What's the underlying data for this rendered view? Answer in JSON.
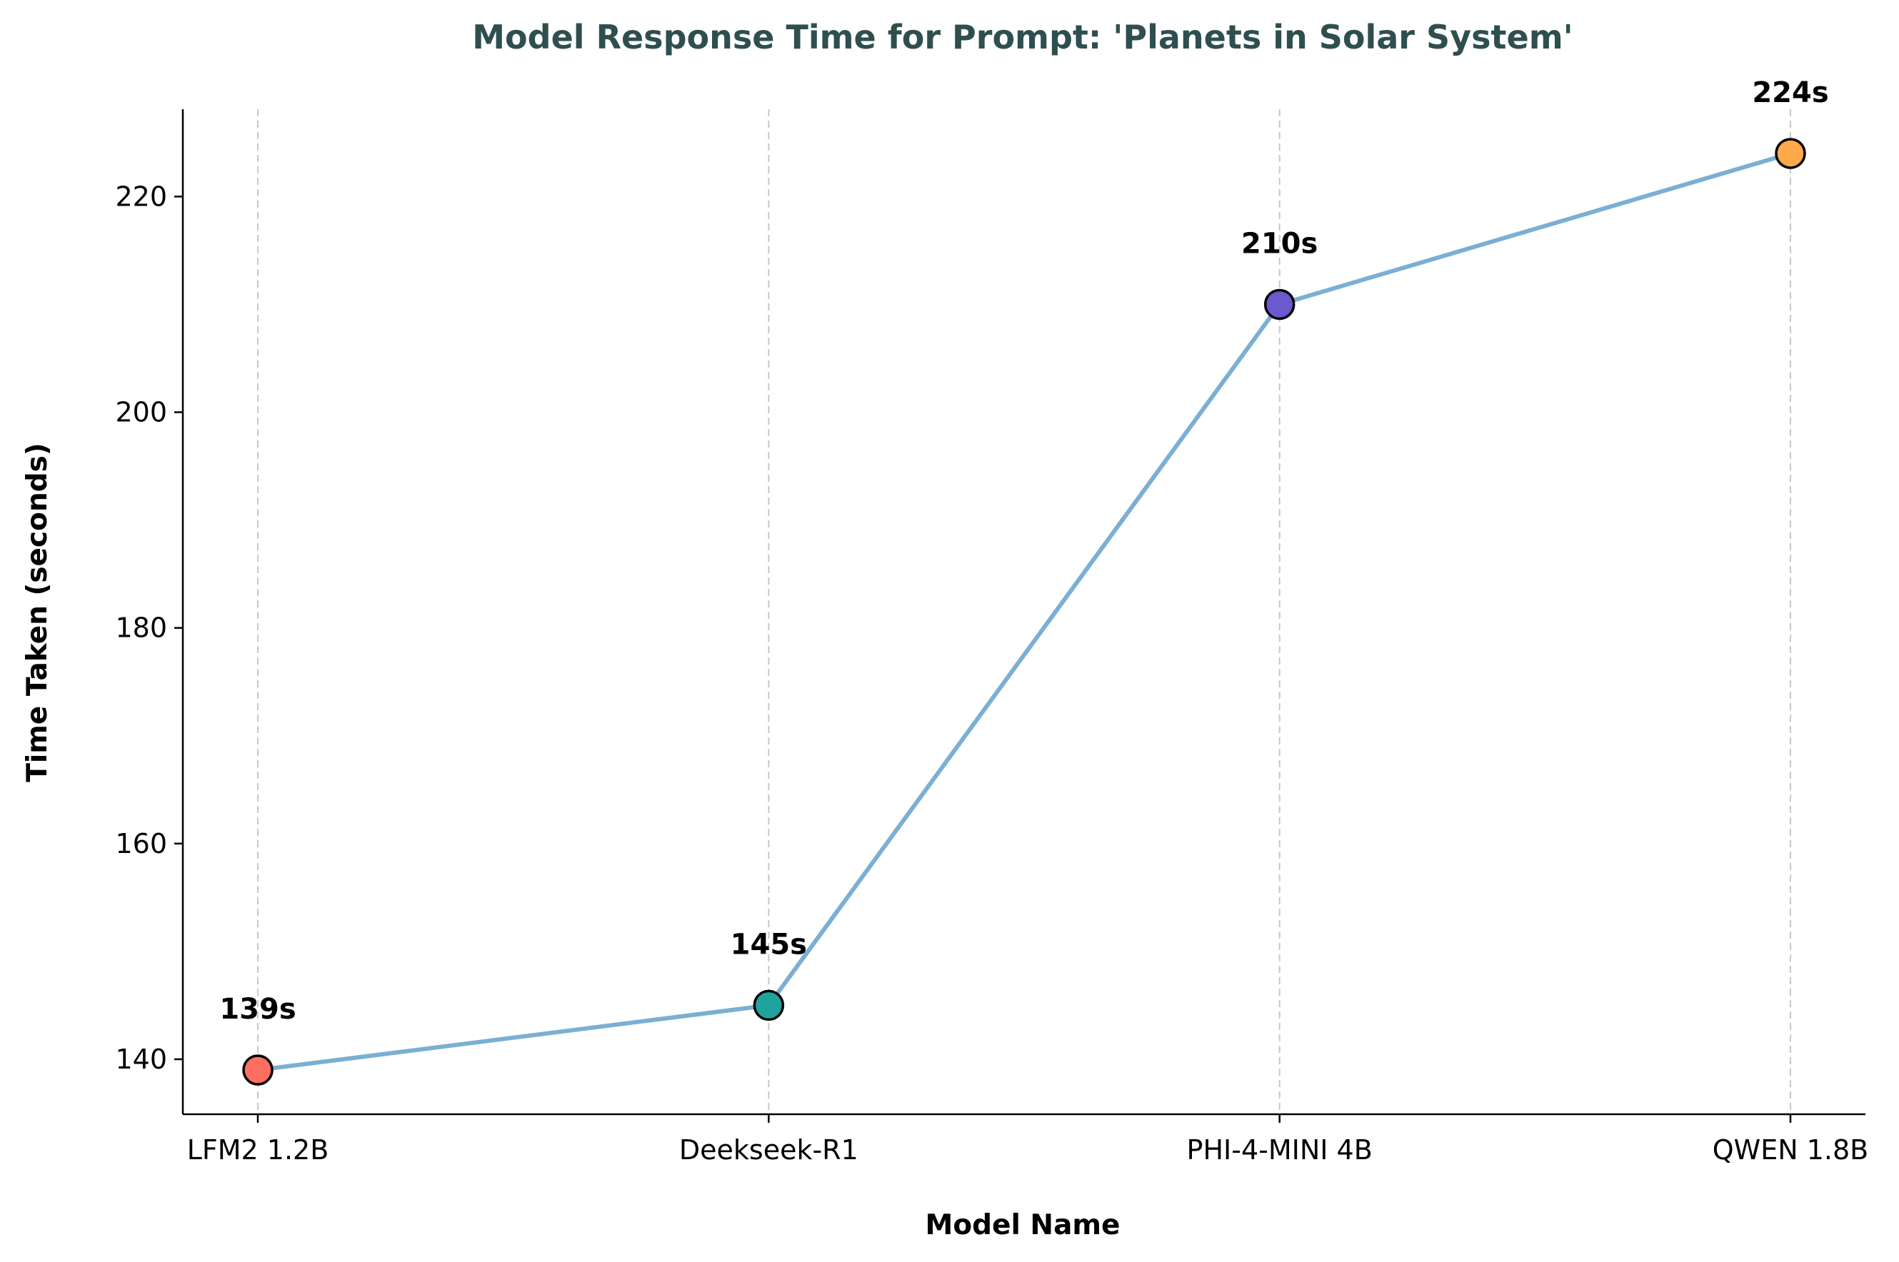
{
  "chart_data": {
    "type": "line",
    "title": "Model Response Time for Prompt: 'Planets in Solar System'",
    "xlabel": "Model Name",
    "ylabel": "Time Taken (seconds)",
    "categories": [
      "LFM2 1.2B",
      "Deekseek-R1",
      "PHI-4-MINI 4B",
      "QWEN 1.8B"
    ],
    "values": [
      139,
      145,
      210,
      224
    ],
    "data_labels": [
      "139s",
      "145s",
      "210s",
      "224s"
    ],
    "point_colors": [
      "#ff6f61",
      "#20a39e",
      "#6a5acd",
      "#ffa94d"
    ],
    "line_color": "#7bafd4",
    "yticks": [
      140,
      160,
      180,
      200,
      220
    ],
    "ylim": [
      134.9,
      228.1
    ],
    "grid": "vertical dashed",
    "legend": "none"
  }
}
